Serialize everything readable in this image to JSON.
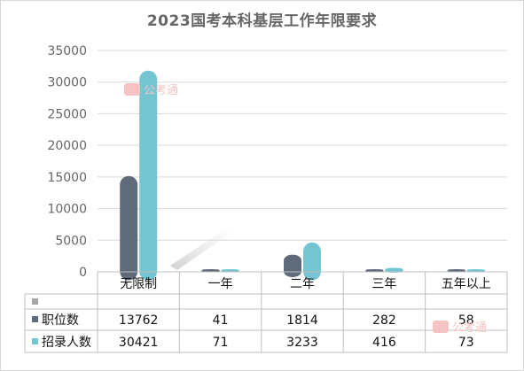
{
  "chart_data": {
    "type": "bar",
    "title": "2023国考本科基层工作年限要求",
    "categories": [
      "无限制",
      "一年",
      "二年",
      "三年",
      "五年以上"
    ],
    "series": [
      {
        "name": "职位数",
        "color": "#5f6b7a",
        "values": [
          13762,
          41,
          1814,
          282,
          58
        ]
      },
      {
        "name": "招录人数",
        "color": "#73c6d1",
        "values": [
          30421,
          71,
          3233,
          416,
          73
        ]
      }
    ],
    "ylim": [
      0,
      35000
    ],
    "yticks": [
      0,
      5000,
      10000,
      15000,
      20000,
      25000,
      30000,
      35000
    ],
    "grid": true,
    "legend": "data-table"
  },
  "watermark": "公考通"
}
